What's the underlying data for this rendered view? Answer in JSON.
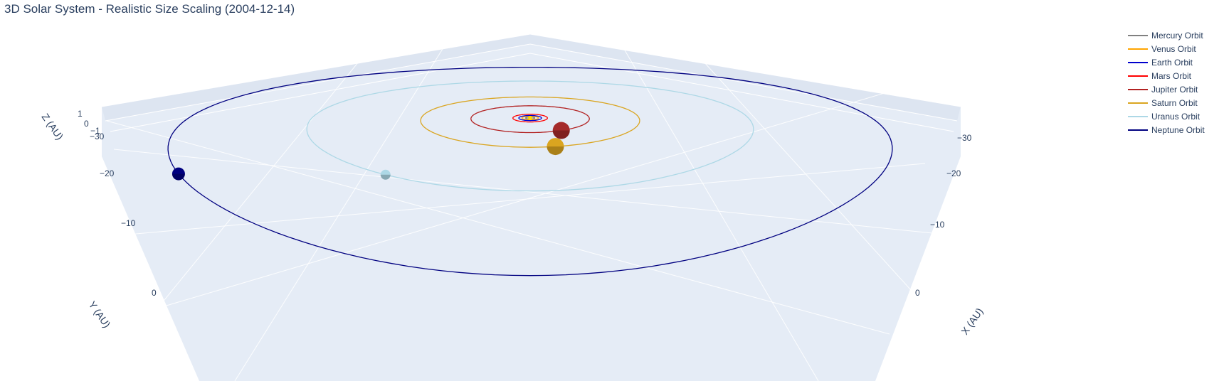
{
  "title": "3D Solar System - Realistic Size Scaling (2004-12-14)",
  "chart_data": {
    "type": "scatter3d",
    "title": "3D Solar System - Realistic Size Scaling (2004-12-14)",
    "axes": {
      "x": {
        "label": "X (AU)",
        "ticks": [
          "0",
          "−10",
          "−20",
          "−30"
        ]
      },
      "y": {
        "label": "Y (AU)",
        "ticks": [
          "0",
          "−10",
          "−20",
          "−30"
        ]
      },
      "z": {
        "label": "Z (AU)",
        "ticks": [
          "1",
          "0",
          "−1"
        ]
      }
    },
    "legend_position": "top-right",
    "series": [
      {
        "name": "Mercury Orbit",
        "color": "#808080",
        "radius_au": 0.39
      },
      {
        "name": "Venus Orbit",
        "color": "#FFA500",
        "radius_au": 0.72
      },
      {
        "name": "Earth Orbit",
        "color": "#0000CD",
        "radius_au": 1.0
      },
      {
        "name": "Mars Orbit",
        "color": "#FF0000",
        "radius_au": 1.52
      },
      {
        "name": "Jupiter Orbit",
        "color": "#B22222",
        "radius_au": 5.2
      },
      {
        "name": "Saturn Orbit",
        "color": "#DAA520",
        "radius_au": 9.58
      },
      {
        "name": "Uranus Orbit",
        "color": "#ADD8E6",
        "radius_au": 19.2
      },
      {
        "name": "Neptune Orbit",
        "color": "#000080",
        "radius_au": 30.05
      }
    ],
    "planets": [
      {
        "body": "Jupiter",
        "color": "#A52A2A",
        "angle_deg": 60
      },
      {
        "body": "Saturn",
        "color": "#DAA520",
        "angle_deg": 78
      },
      {
        "body": "Uranus",
        "color": "#ADD8E6",
        "angle_deg": 123
      },
      {
        "body": "Neptune",
        "color": "#000080",
        "angle_deg": 148
      }
    ]
  }
}
